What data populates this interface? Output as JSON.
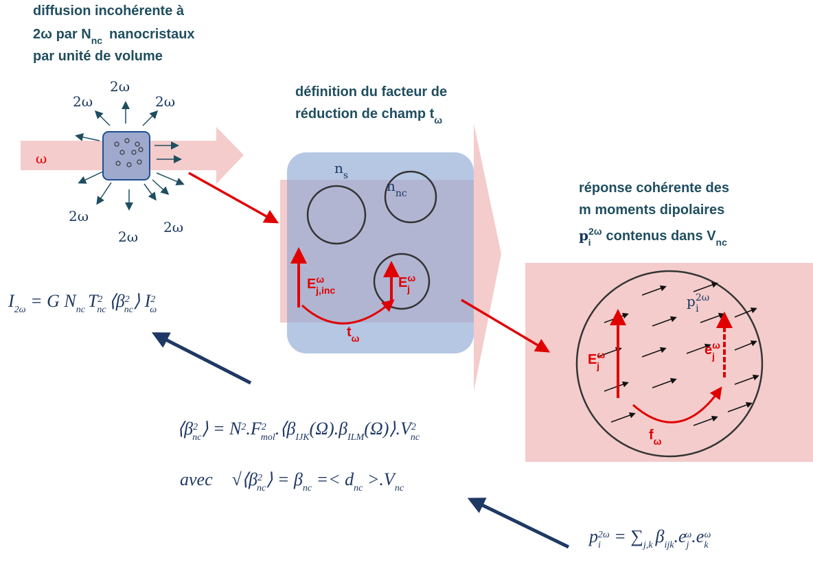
{
  "scatter": {
    "caption": [
      "diffusion incohérente à",
      "2ω par N",
      "nc",
      "nanocristaux",
      "par unité de volume"
    ],
    "input": "ω",
    "harmonics": [
      "2ω",
      "2ω",
      "2ω",
      "2ω",
      "2ω",
      "2ω",
      "2ω",
      "2ω"
    ]
  },
  "field": {
    "caption": [
      "définition du facteur de",
      "réduction de champ t",
      "ω"
    ],
    "medium": [
      "n",
      "s"
    ],
    "crystal": [
      "n",
      "nc"
    ],
    "incident": [
      "E",
      "ω",
      "j,inc"
    ],
    "local": [
      "E",
      "ω",
      "j"
    ],
    "factor": [
      "t",
      "ω"
    ]
  },
  "response": {
    "caption": [
      "réponse cohérente des",
      "m moments dipolaires",
      "p",
      "2ω",
      "i",
      "contenus dans V",
      "nc"
    ],
    "dipole": [
      "p",
      "2ω",
      "i"
    ],
    "field": [
      "E",
      "ω",
      "j"
    ],
    "local": [
      "e",
      "ω",
      "j"
    ],
    "factor": [
      "f",
      "ω"
    ]
  },
  "formulas": [
    [
      "I",
      "2ω",
      " = G N",
      "nc",
      "T",
      "2",
      "nc",
      "⟨β",
      "2",
      "nc",
      "⟩ I",
      "2",
      "ω"
    ],
    [
      "⟨β",
      "2",
      "nc",
      "⟩ = N",
      "2",
      ".F",
      "2",
      "mol",
      ".⟨β",
      "IJK",
      "(Ω).β",
      "ILM",
      "(Ω)⟩.V",
      "2",
      "nc"
    ],
    [
      "avec",
      "√⟨β",
      "2",
      "nc",
      "⟩ = β",
      "nc",
      " =< d",
      "nc",
      " >.V",
      "nc"
    ],
    [
      "p",
      "i",
      "2ω",
      " = ∑",
      "j,k",
      "β",
      "ijk",
      ".e",
      "j",
      "ω",
      ".e",
      "k",
      "ω"
    ]
  ]
}
